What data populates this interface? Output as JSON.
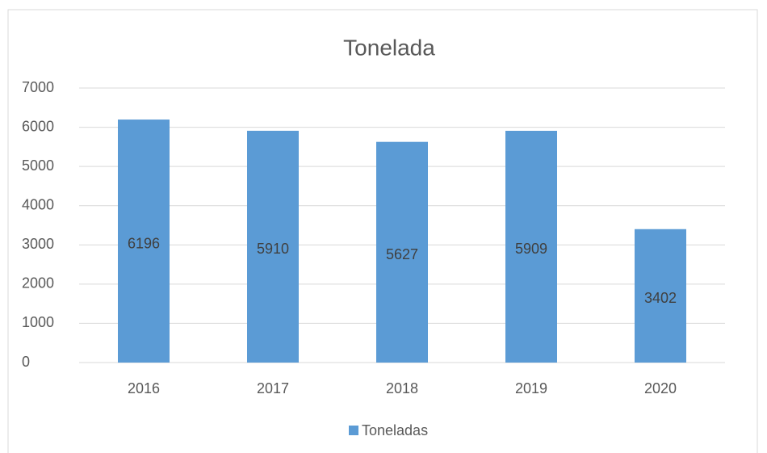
{
  "chart_data": {
    "type": "bar",
    "title": "Tonelada",
    "categories": [
      "2016",
      "2017",
      "2018",
      "2019",
      "2020"
    ],
    "series": [
      {
        "name": "Toneladas",
        "color": "#5b9bd5",
        "values": [
          6196,
          5910,
          5627,
          5909,
          3402
        ]
      }
    ],
    "ylim": [
      0,
      7000
    ],
    "yticks": [
      0,
      1000,
      2000,
      3000,
      4000,
      5000,
      6000,
      7000
    ],
    "grid": true,
    "legend": "bottom",
    "data_labels": true
  }
}
